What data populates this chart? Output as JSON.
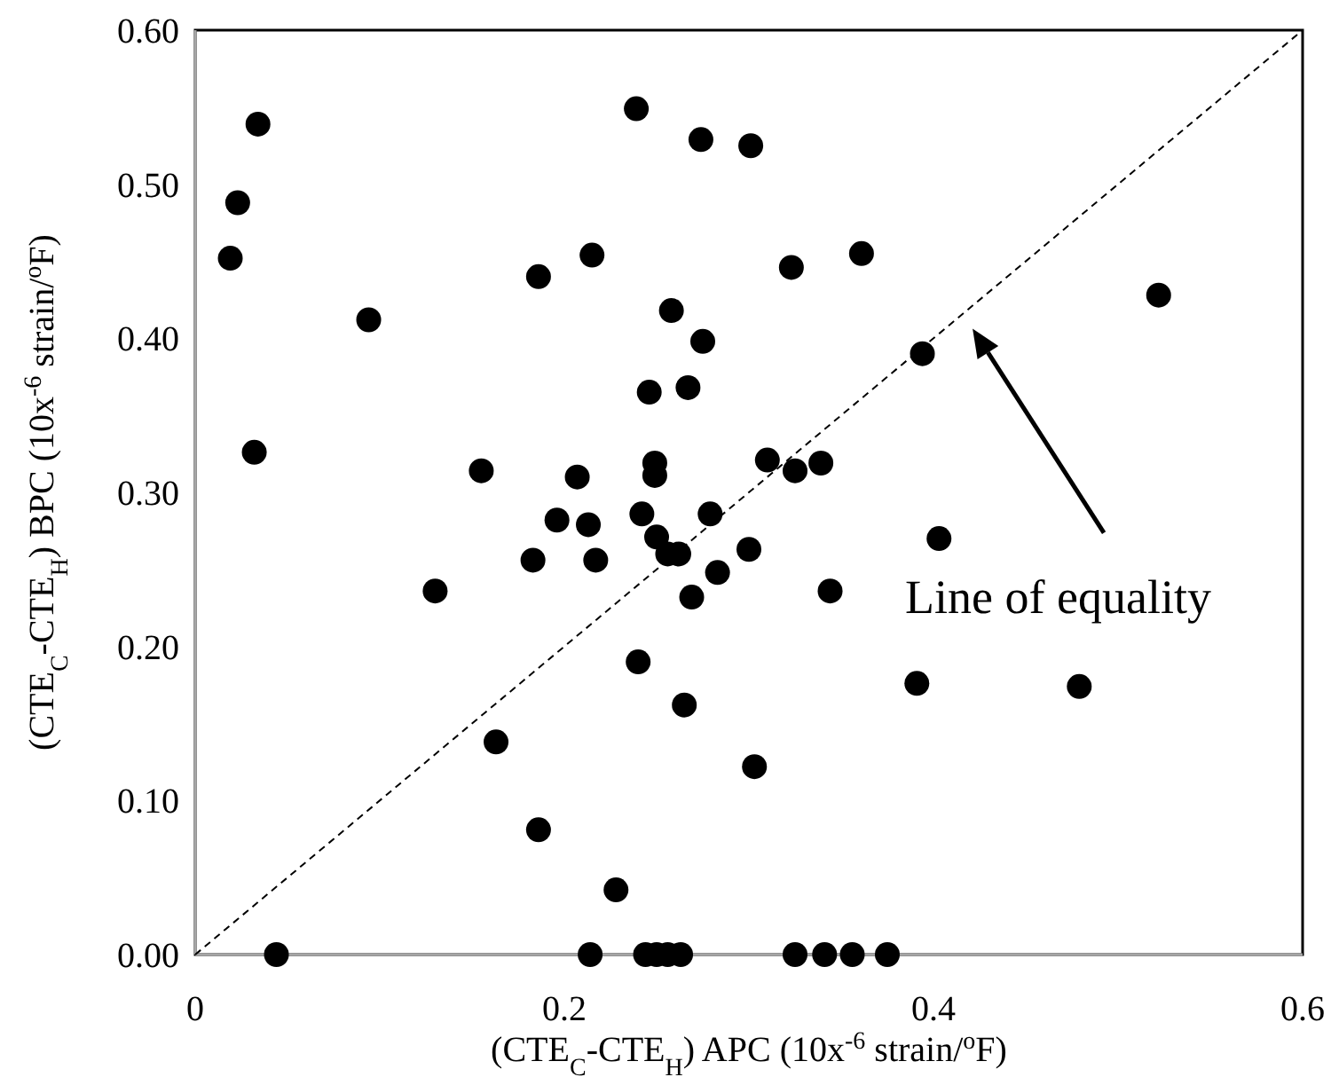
{
  "chart_data": {
    "type": "scatter",
    "xlabel": "(CTE$_{C}$-CTE$_{H}$) APC (10x$^{-6}$ strain/$^{o}$F)",
    "ylabel": "(CTE$_{C}$-CTE$_{H}$) BPC (10x$^{-6}$ strain/$^{o}$F)",
    "xlim": [
      0,
      0.6
    ],
    "ylim": [
      0,
      0.6
    ],
    "xticks": [
      0,
      0.2,
      0.4,
      0.6
    ],
    "yticks": [
      {
        "value": 0,
        "label": "0.00"
      },
      {
        "value": 0.1,
        "label": "0.10"
      },
      {
        "value": 0.2,
        "label": "0.20"
      },
      {
        "value": 0.3,
        "label": "0.30"
      },
      {
        "value": 0.4,
        "label": "0.40"
      },
      {
        "value": 0.5,
        "label": "0.50"
      },
      {
        "value": 0.6,
        "label": "0.60"
      }
    ],
    "grid": false,
    "marker": "circle",
    "series": [
      {
        "color": "#000000",
        "x": [
          0.034,
          0.023,
          0.019,
          0.094,
          0.032,
          0.239,
          0.274,
          0.301,
          0.186,
          0.215,
          0.258,
          0.275,
          0.246,
          0.267,
          0.155,
          0.207,
          0.249,
          0.249,
          0.31,
          0.196,
          0.213,
          0.242,
          0.279,
          0.25,
          0.522,
          0.394,
          0.361,
          0.323,
          0.325,
          0.339,
          0.403,
          0.183,
          0.217,
          0.13,
          0.256,
          0.262,
          0.283,
          0.269,
          0.3,
          0.24,
          0.265,
          0.163,
          0.303,
          0.186,
          0.228,
          0.044,
          0.214,
          0.244,
          0.25,
          0.256,
          0.263,
          0.325,
          0.341,
          0.356,
          0.375,
          0.391,
          0.479,
          0.344
        ],
        "values": [
          0.539,
          0.488,
          0.452,
          0.412,
          0.326,
          0.549,
          0.529,
          0.525,
          0.44,
          0.454,
          0.418,
          0.398,
          0.365,
          0.368,
          0.314,
          0.31,
          0.319,
          0.311,
          0.321,
          0.282,
          0.279,
          0.286,
          0.286,
          0.271,
          0.428,
          0.39,
          0.455,
          0.446,
          0.314,
          0.319,
          0.27,
          0.256,
          0.256,
          0.236,
          0.26,
          0.26,
          0.248,
          0.232,
          0.263,
          0.19,
          0.162,
          0.138,
          0.122,
          0.081,
          0.042,
          0,
          0,
          0,
          0,
          0,
          0,
          0,
          0,
          0,
          0,
          0.176,
          0.174,
          0.236
        ]
      },
      {
        "type": "line",
        "color": "#000000",
        "line_style": "dashed",
        "marker": "none",
        "x": [
          0,
          0.6
        ],
        "values": [
          0,
          0.6
        ]
      }
    ],
    "annotations": [
      "Line of equality"
    ]
  }
}
